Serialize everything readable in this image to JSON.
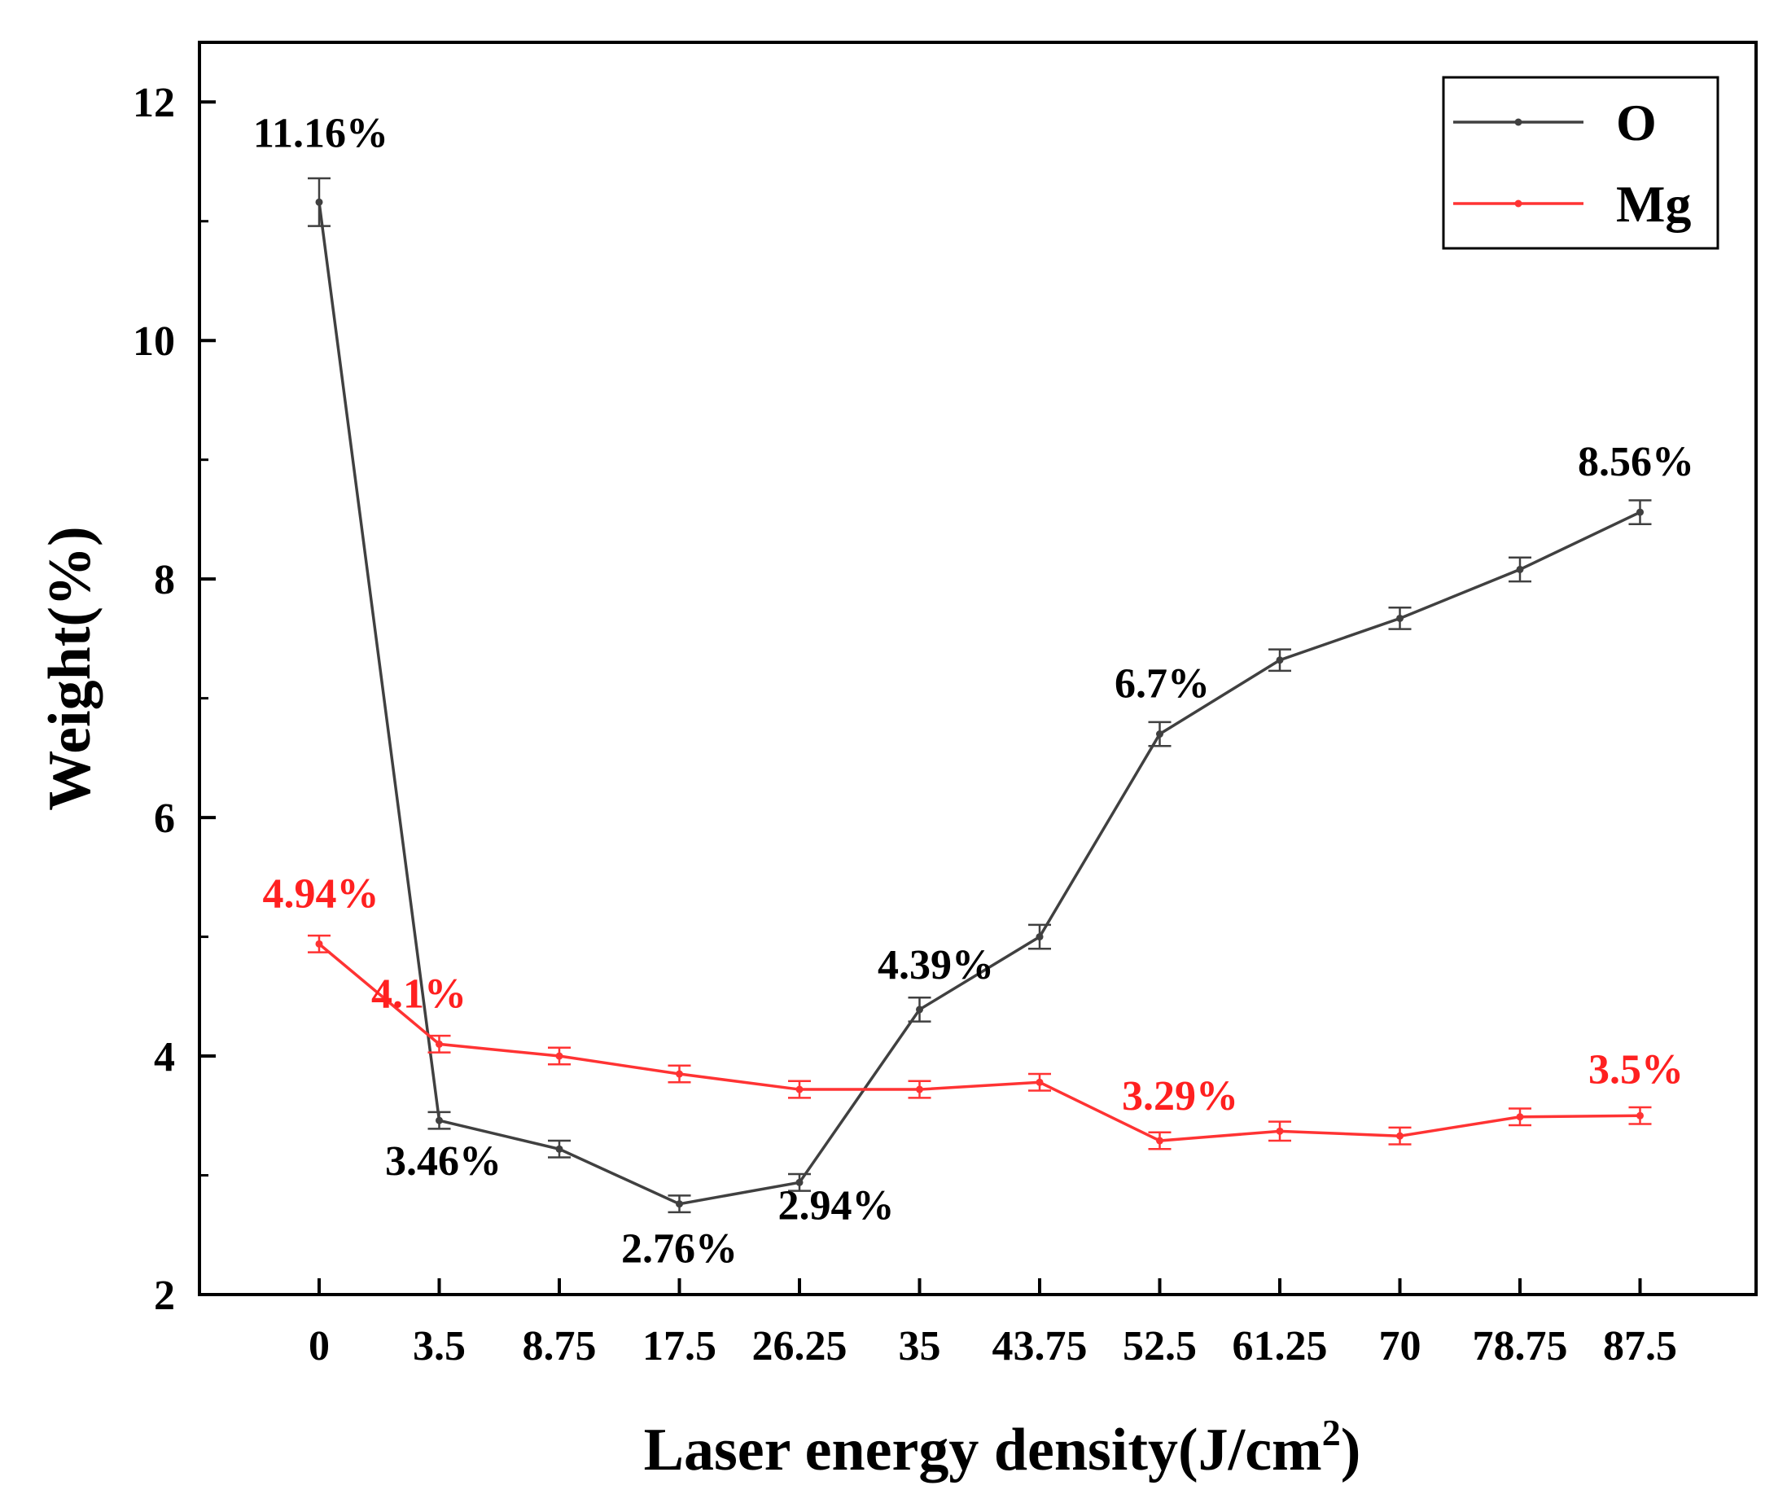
{
  "chart_data": {
    "type": "line",
    "title": "",
    "xlabel": "Laser energy density(J/cm",
    "xlabel_superscript": "2",
    "xlabel_suffix": ")",
    "ylabel": "Weight(%)",
    "categories": [
      "0",
      "3.5",
      "8.75",
      "17.5",
      "26.25",
      "35",
      "43.75",
      "52.5",
      "61.25",
      "70",
      "78.75",
      "87.5"
    ],
    "ylim": [
      2,
      12.5
    ],
    "yticks": [
      2,
      4,
      6,
      8,
      10,
      12
    ],
    "grid": false,
    "legend_position": "top-right",
    "series": [
      {
        "name": "O",
        "color": "#404040",
        "values": [
          11.16,
          3.46,
          3.22,
          2.76,
          2.94,
          4.39,
          5.0,
          6.7,
          7.32,
          7.67,
          8.08,
          8.56
        ],
        "errors": [
          0.2,
          0.07,
          0.07,
          0.07,
          0.07,
          0.1,
          0.1,
          0.1,
          0.09,
          0.09,
          0.1,
          0.1
        ]
      },
      {
        "name": "Mg",
        "color": "#ff3333",
        "values": [
          4.94,
          4.1,
          4.0,
          3.85,
          3.72,
          3.72,
          3.78,
          3.29,
          3.37,
          3.33,
          3.49,
          3.5
        ],
        "errors": [
          0.07,
          0.07,
          0.07,
          0.07,
          0.07,
          0.07,
          0.07,
          0.07,
          0.08,
          0.07,
          0.07,
          0.07
        ]
      }
    ],
    "annotations": [
      {
        "series": 0,
        "index": 0,
        "text": "11.16%",
        "color": "#000000"
      },
      {
        "series": 0,
        "index": 1,
        "text": "3.46%",
        "color": "#000000"
      },
      {
        "series": 0,
        "index": 3,
        "text": "2.76%",
        "color": "#000000"
      },
      {
        "series": 0,
        "index": 4,
        "text": "2.94%",
        "color": "#000000"
      },
      {
        "series": 0,
        "index": 5,
        "text": "4.39%",
        "color": "#000000"
      },
      {
        "series": 0,
        "index": 7,
        "text": "6.7%",
        "color": "#000000"
      },
      {
        "series": 0,
        "index": 11,
        "text": "8.56%",
        "color": "#000000"
      },
      {
        "series": 1,
        "index": 0,
        "text": "4.94%",
        "color": "#ff2020"
      },
      {
        "series": 1,
        "index": 1,
        "text": "4.1%",
        "color": "#ff2020"
      },
      {
        "series": 1,
        "index": 7,
        "text": "3.29%",
        "color": "#ff2020"
      },
      {
        "series": 1,
        "index": 11,
        "text": "3.5%",
        "color": "#ff2020"
      }
    ]
  }
}
